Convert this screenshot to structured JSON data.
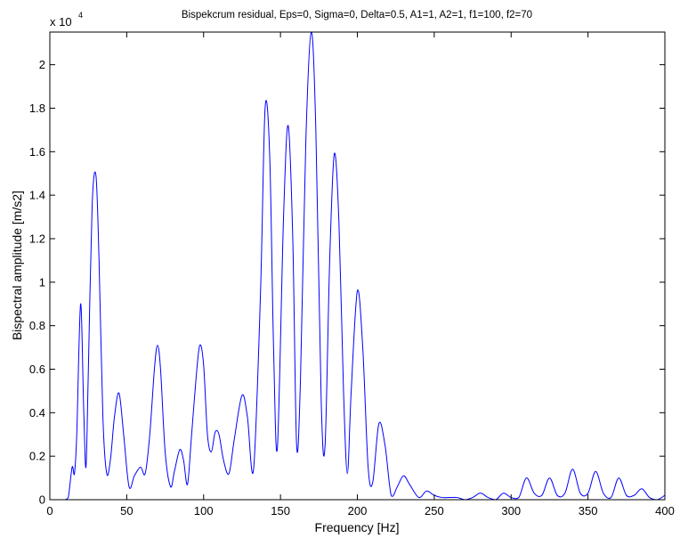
{
  "chart_data": {
    "type": "line",
    "title": "Bispekcrum residual, Eps=0, Sigma=0, Delta=0.5, A1=1, A2=1, f1=100, f2=70",
    "xlabel": "Frequency [Hz]",
    "ylabel": "Bispectral amplitude [m/s2]",
    "y_exponent_label": "x 10",
    "y_exponent_power": "4",
    "xlim": [
      0,
      400
    ],
    "ylim": [
      0,
      2.15
    ],
    "xticks": [
      0,
      50,
      100,
      150,
      200,
      250,
      300,
      350,
      400
    ],
    "xtick_labels": [
      "0",
      "50",
      "100",
      "150",
      "200",
      "250",
      "300",
      "350",
      "400"
    ],
    "yticks": [
      0,
      0.2,
      0.4,
      0.6,
      0.8,
      1,
      1.2,
      1.4,
      1.6,
      1.8,
      2
    ],
    "ytick_labels": [
      "0",
      "0.2",
      "0.4",
      "0.6",
      "0.8",
      "1",
      "1.2",
      "1.4",
      "1.6",
      "1.8",
      "2"
    ],
    "grid": false,
    "line_color": "#0000ff",
    "series": [
      {
        "x": [
          10,
          12,
          14.5,
          16,
          17.5,
          20,
          22,
          23.5,
          25,
          27.5,
          30,
          32,
          34.5,
          37,
          39.5,
          42,
          45,
          48,
          51.5,
          55,
          59,
          62,
          65,
          68,
          70,
          72,
          75,
          78.5,
          81,
          84.5,
          87,
          89.5,
          92,
          95,
          97.5,
          100,
          102.5,
          105,
          107.5,
          110,
          113,
          116.5,
          120,
          125,
          128.5,
          132.5,
          137,
          140,
          143,
          145.5,
          148,
          152,
          155,
          158,
          160.5,
          163,
          166.5,
          170,
          173,
          176.5,
          179,
          182,
          185,
          188,
          191,
          193.5,
          196,
          200,
          203.5,
          207,
          210,
          214,
          218,
          222,
          226,
          230,
          234,
          240,
          245,
          250,
          255,
          260,
          265,
          270,
          275,
          280,
          285,
          290,
          295,
          300,
          305,
          310,
          315,
          320,
          325,
          330,
          335,
          340,
          345,
          350,
          355,
          360,
          365,
          370,
          375,
          380,
          385,
          390,
          395,
          400
        ],
        "y": [
          0,
          0.01,
          0.15,
          0.12,
          0.3,
          0.9,
          0.42,
          0.15,
          0.58,
          1.35,
          1.49,
          1.1,
          0.38,
          0.12,
          0.19,
          0.38,
          0.49,
          0.3,
          0.06,
          0.11,
          0.15,
          0.12,
          0.3,
          0.6,
          0.71,
          0.6,
          0.22,
          0.06,
          0.13,
          0.23,
          0.18,
          0.07,
          0.28,
          0.55,
          0.71,
          0.62,
          0.3,
          0.22,
          0.31,
          0.3,
          0.18,
          0.12,
          0.28,
          0.48,
          0.38,
          0.14,
          0.95,
          1.8,
          1.58,
          0.7,
          0.24,
          1.3,
          1.72,
          1.2,
          0.25,
          0.55,
          1.65,
          2.15,
          1.7,
          0.45,
          0.25,
          1.1,
          1.59,
          1.28,
          0.5,
          0.12,
          0.5,
          0.96,
          0.7,
          0.15,
          0.08,
          0.35,
          0.25,
          0.02,
          0.06,
          0.11,
          0.07,
          0.01,
          0.04,
          0.02,
          0.01,
          0.01,
          0.01,
          0,
          0.01,
          0.03,
          0.01,
          0,
          0.03,
          0.01,
          0.01,
          0.1,
          0.03,
          0.02,
          0.1,
          0.02,
          0.03,
          0.14,
          0.03,
          0.03,
          0.13,
          0.03,
          0.01,
          0.1,
          0.02,
          0.02,
          0.05,
          0.01,
          0,
          0.02
        ]
      }
    ]
  }
}
